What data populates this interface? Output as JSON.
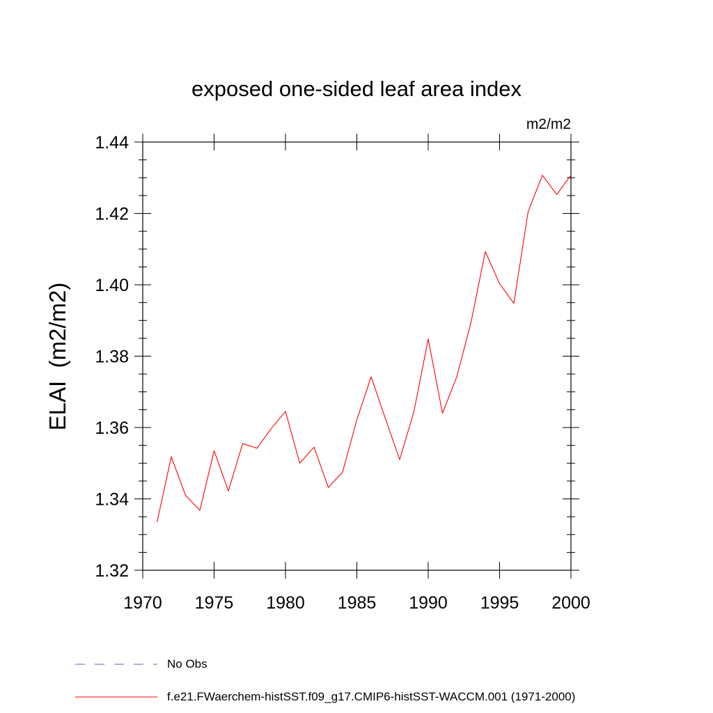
{
  "chart_data": {
    "type": "line",
    "title": "exposed one-sided leaf area index",
    "units_label": "m2/m2",
    "xlabel": "",
    "ylabel": "ELAI  (m2/m2)",
    "xlim": [
      1970,
      2000
    ],
    "ylim": [
      1.32,
      1.44
    ],
    "x_ticks": [
      1970,
      1975,
      1980,
      1985,
      1990,
      1995,
      2000
    ],
    "x_tick_labels": [
      "1970",
      "1975",
      "1980",
      "1985",
      "1990",
      "1995",
      "2000"
    ],
    "y_ticks": [
      1.32,
      1.34,
      1.36,
      1.38,
      1.4,
      1.42,
      1.44
    ],
    "y_tick_labels": [
      "1.32",
      "1.34",
      "1.36",
      "1.38",
      "1.40",
      "1.42",
      "1.44"
    ],
    "grid": false,
    "legend_position": "bottom",
    "series": [
      {
        "name": "f.e21.FWaerchem-histSST.f09_g17.CMIP6-histSST-WACCM.001 (1971-2000)",
        "color": "#ff0000",
        "style": "solid",
        "x": [
          1971,
          1972,
          1973,
          1974,
          1975,
          1976,
          1977,
          1978,
          1979,
          1980,
          1981,
          1982,
          1983,
          1984,
          1985,
          1986,
          1987,
          1988,
          1989,
          1990,
          1991,
          1992,
          1993,
          1994,
          1995,
          1996,
          1997,
          1998,
          1999,
          2000
        ],
        "values": [
          1.3335,
          1.3518,
          1.341,
          1.3368,
          1.3535,
          1.3422,
          1.3555,
          1.3542,
          1.3597,
          1.3645,
          1.35,
          1.3545,
          1.3432,
          1.3475,
          1.3622,
          1.3742,
          1.3625,
          1.351,
          1.3645,
          1.3848,
          1.364,
          1.3742,
          1.3895,
          1.4093,
          1.4003,
          1.3948,
          1.4205,
          1.4307,
          1.4253,
          1.4307
        ]
      }
    ],
    "legend": [
      {
        "label": "No Obs",
        "color": "#6a5acd",
        "style": "dashed"
      },
      {
        "label": "f.e21.FWaerchem-histSST.f09_g17.CMIP6-histSST-WACCM.001 (1971-2000)",
        "color": "#ff0000",
        "style": "solid"
      }
    ]
  }
}
